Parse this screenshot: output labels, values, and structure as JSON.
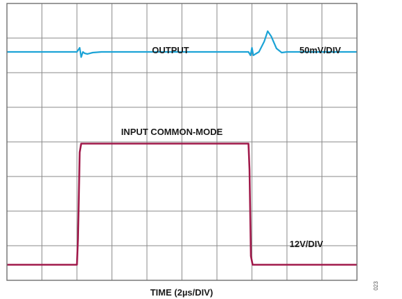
{
  "chart_data": {
    "type": "line",
    "title": "",
    "xlabel": "TIME (2µs/DIV)",
    "ylabel": "",
    "grid": true,
    "x_divisions": 10,
    "y_divisions": 8,
    "series": [
      {
        "name": "OUTPUT",
        "scale": "50mV/DIV",
        "color": "#1ba3d6",
        "x_div": [
          0,
          2.0,
          2.08,
          2.12,
          2.17,
          2.22,
          2.3,
          2.45,
          2.7,
          6.9,
          6.96,
          7.0,
          7.04,
          7.1,
          7.2,
          7.35,
          7.45,
          7.55,
          7.7,
          7.85,
          8.0,
          8.3,
          10
        ],
        "y_div": [
          6.6,
          6.6,
          6.72,
          6.45,
          6.6,
          6.56,
          6.54,
          6.58,
          6.6,
          6.6,
          6.5,
          6.72,
          6.5,
          6.54,
          6.6,
          6.9,
          7.2,
          7.05,
          6.7,
          6.58,
          6.6,
          6.6,
          6.6
        ]
      },
      {
        "name": "INPUT COMMON-MODE",
        "scale": "12V/DIV",
        "color": "#a0194a",
        "x_div": [
          0,
          2.0,
          2.03,
          2.08,
          2.12,
          6.9,
          6.93,
          6.97,
          7.02,
          10
        ],
        "y_div": [
          0.45,
          0.45,
          1.2,
          3.7,
          3.95,
          3.95,
          3.2,
          0.7,
          0.45,
          0.45
        ]
      }
    ],
    "annotations": {
      "output_label": "OUTPUT",
      "output_scale": "50mV/DIV",
      "input_label": "INPUT COMMON-MODE",
      "input_scale": "12V/DIV"
    }
  },
  "figure_id": "023"
}
